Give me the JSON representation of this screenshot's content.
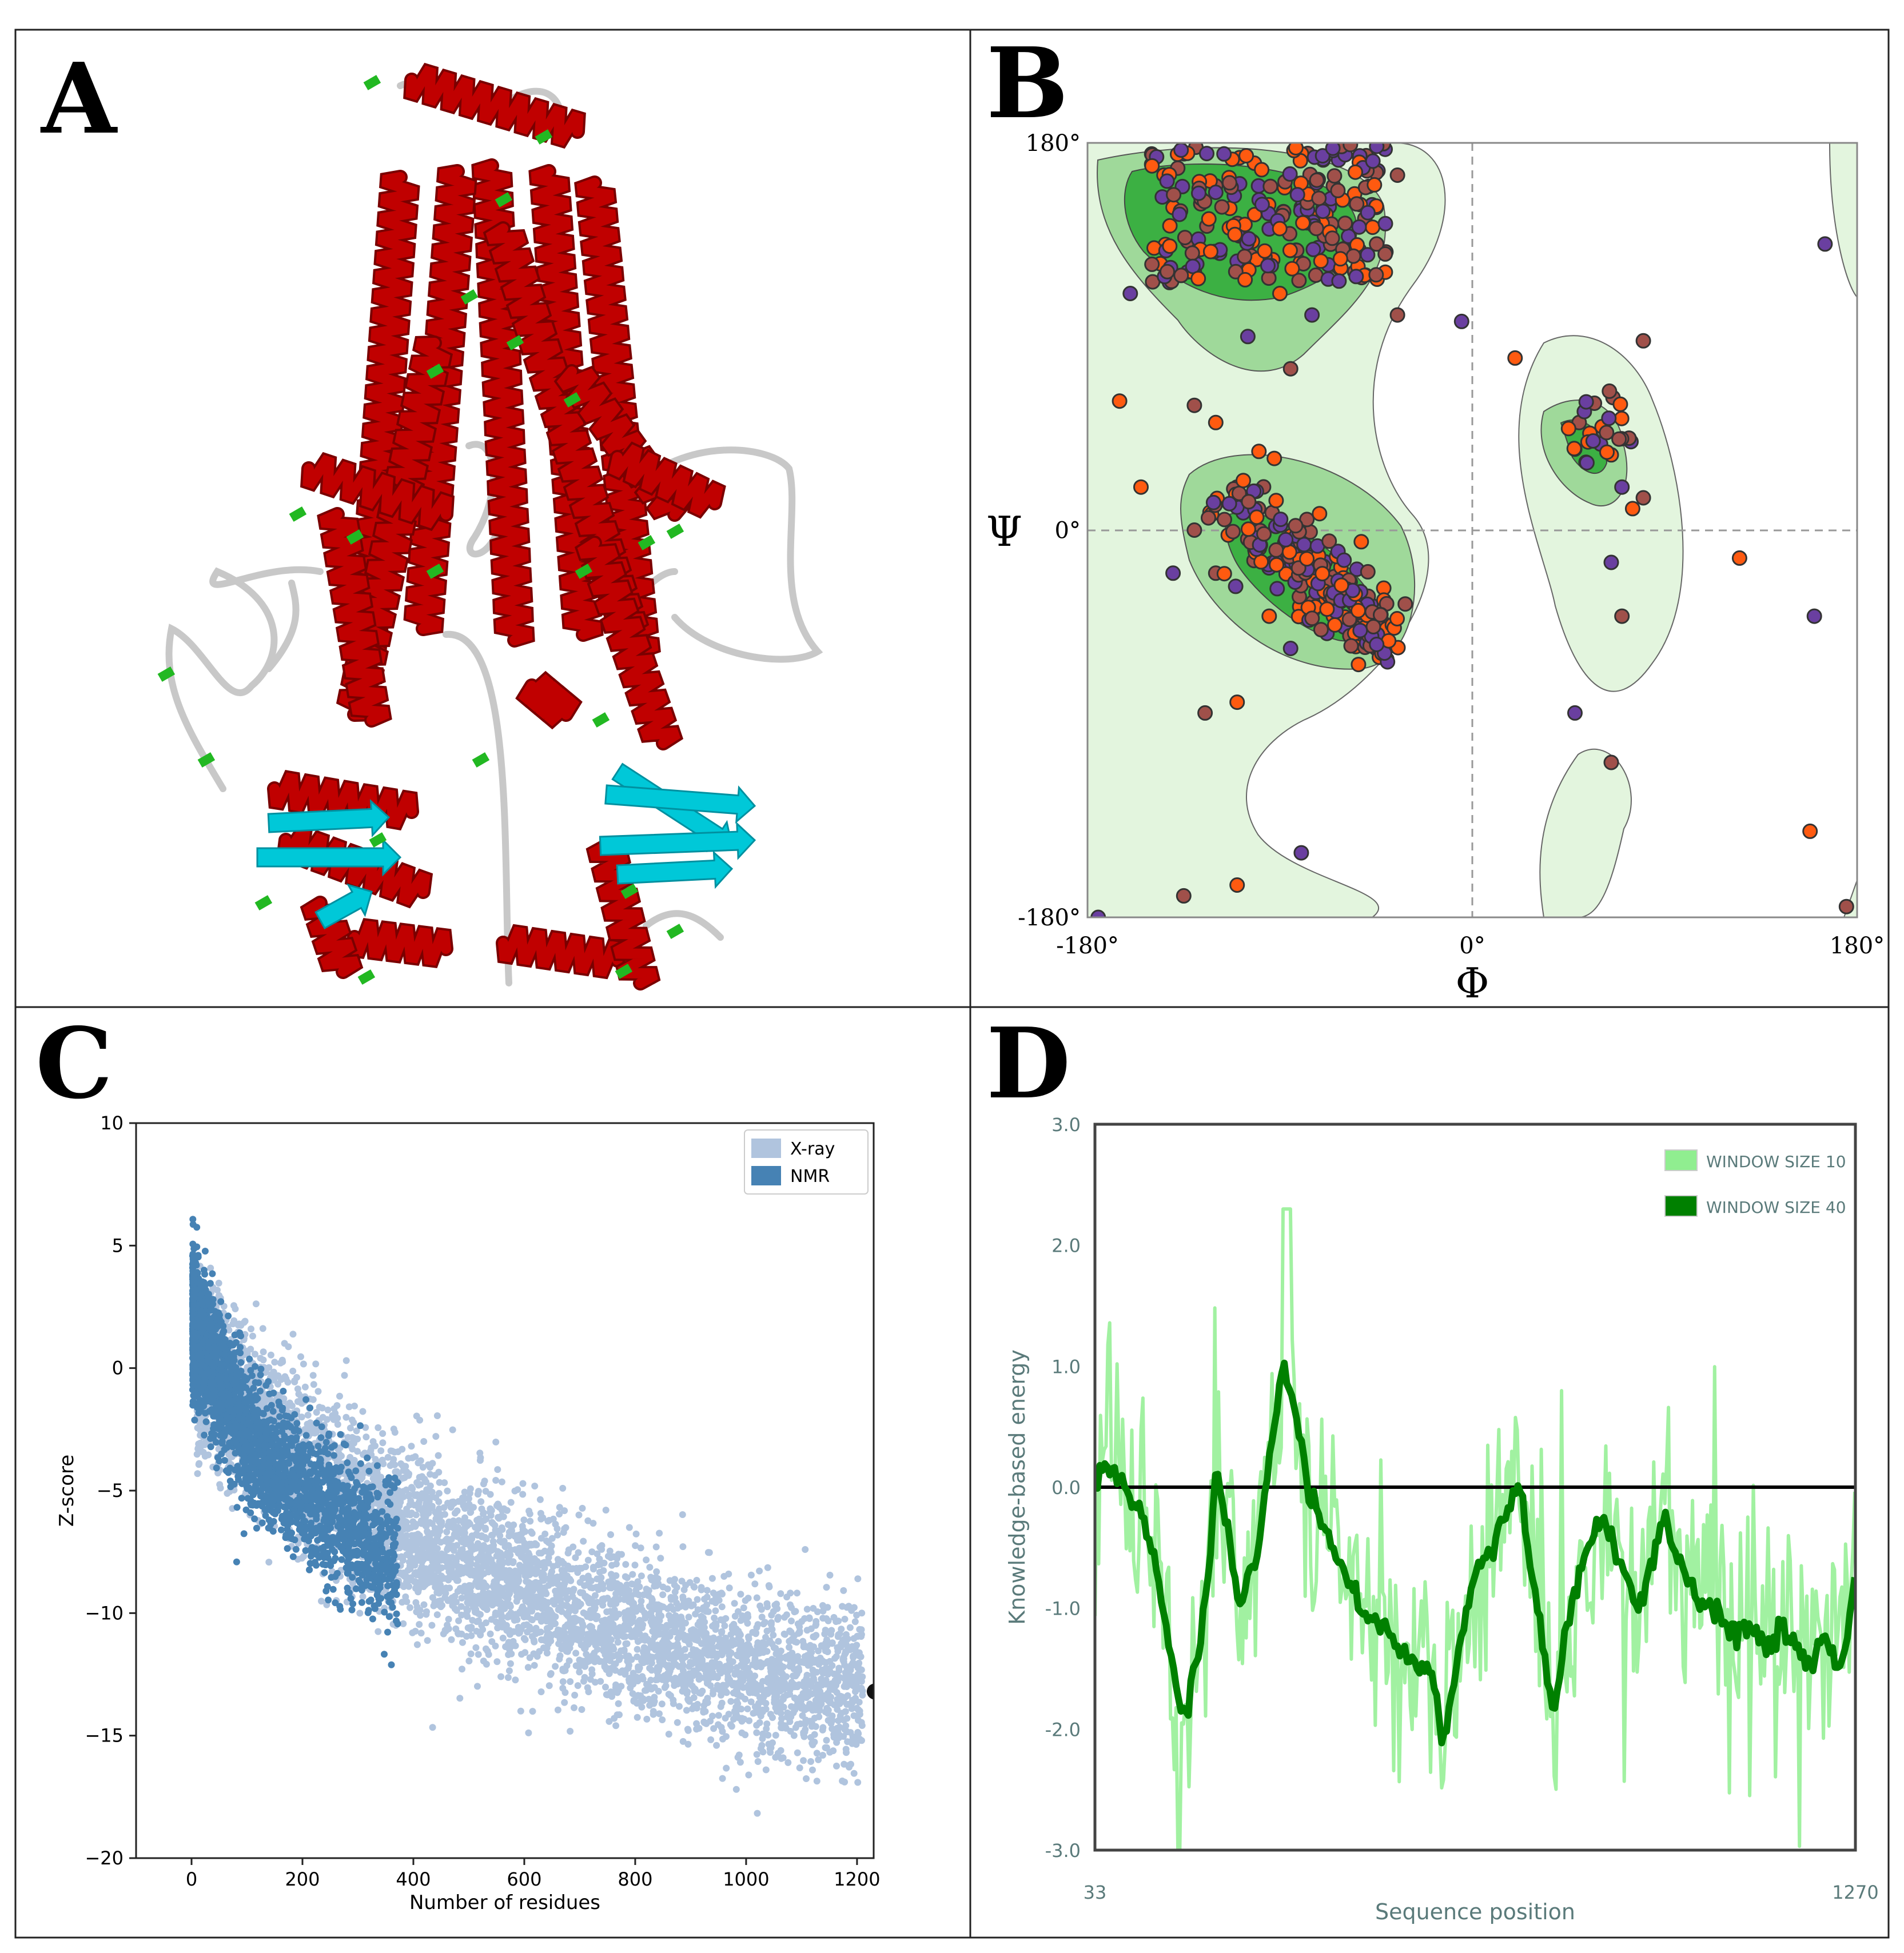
{
  "figure": {
    "panels": [
      {
        "letter": "A"
      },
      {
        "letter": "B"
      },
      {
        "letter": "C"
      },
      {
        "letter": "D"
      }
    ]
  },
  "colors": {
    "border": "#222222",
    "helix": "#c00000",
    "sheet": "#00c8d8",
    "turn": "#22b822",
    "coil": "#c8c8c8",
    "rama_favored": "#3cb043",
    "rama_allowed": "#9fd99a",
    "rama_generous": "#e3f5de",
    "dot_purple": "#6a3fa0",
    "dot_orange": "#ff5a10",
    "xray": "#b0c4de",
    "nmr": "#4682b4",
    "energy10": "#90ee90",
    "energy40": "#008000",
    "axis_text": "#5a7a7a"
  },
  "chart_data": [
    {
      "panel": "B",
      "type": "scatter",
      "title": "",
      "xlabel": "Φ",
      "ylabel": "Ψ",
      "xlim": [
        -180,
        180
      ],
      "ylim": [
        -180,
        180
      ],
      "x_ticks": [
        "-180°",
        "0°",
        "180°"
      ],
      "y_ticks": [
        "180°",
        "0°",
        "-180°"
      ],
      "regions": [
        {
          "name": "beta",
          "favored_phi": [
            -160,
            -50
          ],
          "favored_psi": [
            110,
            180
          ]
        },
        {
          "name": "alpha-right",
          "favored_phi": [
            -100,
            -40
          ],
          "favored_psi": [
            -60,
            -10
          ]
        },
        {
          "name": "alpha-left",
          "favored_phi": [
            40,
            70
          ],
          "favored_psi": [
            20,
            60
          ]
        }
      ],
      "points": [
        {
          "phi": -80,
          "psi": 150
        },
        {
          "phi": -95,
          "psi": 140
        },
        {
          "phi": -120,
          "psi": 160
        },
        {
          "phi": -70,
          "psi": 140
        },
        {
          "phi": -60,
          "psi": 130
        },
        {
          "phi": -150,
          "psi": 170
        },
        {
          "phi": -140,
          "psi": 150
        },
        {
          "phi": -110,
          "psi": 125
        },
        {
          "phi": -65,
          "psi": 160
        },
        {
          "phi": -90,
          "psi": 110
        },
        {
          "phi": -75,
          "psi": 100
        },
        {
          "phi": -55,
          "psi": 120
        },
        {
          "phi": -130,
          "psi": 120
        },
        {
          "phi": -100,
          "psi": 160
        },
        {
          "phi": -85,
          "psi": 130
        },
        {
          "phi": -45,
          "psi": 150
        },
        {
          "phi": -160,
          "psi": 110
        },
        {
          "phi": -35,
          "psi": 165
        },
        {
          "phi": -65,
          "psi": -40
        },
        {
          "phi": -60,
          "psi": -45
        },
        {
          "phi": -70,
          "psi": -30
        },
        {
          "phi": -75,
          "psi": -35
        },
        {
          "phi": -55,
          "psi": -50
        },
        {
          "phi": -80,
          "psi": -20
        },
        {
          "phi": -90,
          "psi": -10
        },
        {
          "phi": -50,
          "psi": -40
        },
        {
          "phi": -100,
          "psi": 10
        },
        {
          "phi": -110,
          "psi": 20
        },
        {
          "phi": -85,
          "psi": -55
        },
        {
          "phi": -45,
          "psi": -55
        },
        {
          "phi": -62,
          "psi": -25
        },
        {
          "phi": -68,
          "psi": -48
        },
        {
          "phi": -120,
          "psi": -20
        },
        {
          "phi": -95,
          "psi": -40
        },
        {
          "phi": -40,
          "psi": -60
        },
        {
          "phi": -130,
          "psi": 0
        },
        {
          "phi": 55,
          "psi": 45
        },
        {
          "phi": 60,
          "psi": 40
        },
        {
          "phi": 50,
          "psi": 50
        },
        {
          "phi": 65,
          "psi": 35
        },
        {
          "phi": 70,
          "psi": 20
        },
        {
          "phi": 80,
          "psi": 15
        },
        {
          "phi": 75,
          "psi": 10
        },
        {
          "phi": 65,
          "psi": -15
        },
        {
          "phi": 70,
          "psi": -40
        },
        {
          "phi": 20,
          "psi": 80
        },
        {
          "phi": -5,
          "psi": 97
        },
        {
          "phi": -35,
          "psi": 100
        },
        {
          "phi": -165,
          "psi": 60
        },
        {
          "phi": -175,
          "psi": -180
        },
        {
          "phi": -135,
          "psi": -170
        },
        {
          "phi": -110,
          "psi": -165
        },
        {
          "phi": -80,
          "psi": -150
        },
        {
          "phi": -125,
          "psi": -85
        },
        {
          "phi": -110,
          "psi": -80
        },
        {
          "phi": 48,
          "psi": -85
        },
        {
          "phi": 65,
          "psi": -108
        },
        {
          "phi": 125,
          "psi": -13
        },
        {
          "phi": 160,
          "psi": -40
        },
        {
          "phi": 175,
          "psi": -175
        },
        {
          "phi": 158,
          "psi": -140
        },
        {
          "phi": 165,
          "psi": 133
        },
        {
          "phi": 80,
          "psi": 88
        },
        {
          "phi": -155,
          "psi": 20
        },
        {
          "phi": -140,
          "psi": -20
        },
        {
          "phi": -130,
          "psi": 58
        },
        {
          "phi": -120,
          "psi": 50
        },
        {
          "phi": -105,
          "psi": 90
        },
        {
          "phi": -85,
          "psi": 75
        }
      ]
    },
    {
      "panel": "C",
      "type": "scatter",
      "title": "",
      "xlabel": "Number of residues",
      "ylabel": "Z-score",
      "xlim": [
        -100,
        1230
      ],
      "ylim": [
        -20,
        10
      ],
      "x_ticks": [
        0,
        200,
        400,
        600,
        800,
        1000,
        1200
      ],
      "y_ticks": [
        10,
        5,
        0,
        -5,
        -10,
        -15,
        -20
      ],
      "legend": [
        "X-ray",
        "NMR"
      ],
      "legend_position": "top-right",
      "series": [
        {
          "name": "X-ray",
          "trend": [
            [
              20,
              0
            ],
            [
              200,
              -4
            ],
            [
              400,
              -7
            ],
            [
              600,
              -9
            ],
            [
              800,
              -11
            ],
            [
              1000,
              -12.5
            ],
            [
              1200,
              -13
            ]
          ],
          "spread": 3
        },
        {
          "name": "NMR",
          "x_range": [
            0,
            370
          ],
          "trend": [
            [
              0,
              2
            ],
            [
              100,
              -3
            ],
            [
              200,
              -5
            ],
            [
              370,
              -8
            ]
          ],
          "spread": 2.5
        }
      ],
      "marker": {
        "x": 1232,
        "y": -13.2
      }
    },
    {
      "panel": "D",
      "type": "line",
      "title": "",
      "xlabel": "Sequence position",
      "ylabel": "Knowledge-based energy",
      "xlim": [
        33,
        1270
      ],
      "ylim": [
        -3.0,
        3.0
      ],
      "x_ticks": [
        "33",
        "1270"
      ],
      "y_ticks": [
        "3.0",
        "2.0",
        "1.0",
        "0.0",
        "-1.0",
        "-2.0",
        "-3.0"
      ],
      "legend": [
        "WINDOW SIZE 10",
        "WINDOW SIZE 40"
      ],
      "series": [
        {
          "name": "WINDOW SIZE 40",
          "points": [
            [
              33,
              0.0
            ],
            [
              50,
              0.2
            ],
            [
              70,
              0.1
            ],
            [
              90,
              -0.1
            ],
            [
              110,
              -0.3
            ],
            [
              130,
              -0.6
            ],
            [
              150,
              -1.2
            ],
            [
              170,
              -1.8
            ],
            [
              180,
              -1.9
            ],
            [
              200,
              -1.4
            ],
            [
              220,
              -0.6
            ],
            [
              230,
              0.2
            ],
            [
              250,
              -0.4
            ],
            [
              270,
              -1.0
            ],
            [
              300,
              -0.5
            ],
            [
              320,
              0.4
            ],
            [
              340,
              1.0
            ],
            [
              360,
              0.6
            ],
            [
              380,
              0.0
            ],
            [
              400,
              -0.3
            ],
            [
              430,
              -0.6
            ],
            [
              460,
              -1.0
            ],
            [
              490,
              -1.1
            ],
            [
              520,
              -1.3
            ],
            [
              550,
              -1.5
            ],
            [
              570,
              -1.4
            ],
            [
              590,
              -1.8
            ],
            [
              600,
              -2.1
            ],
            [
              620,
              -1.5
            ],
            [
              650,
              -0.7
            ],
            [
              680,
              -0.5
            ],
            [
              710,
              -0.1
            ],
            [
              720,
              0.1
            ],
            [
              740,
              -0.6
            ],
            [
              760,
              -1.3
            ],
            [
              780,
              -1.9
            ],
            [
              800,
              -1.2
            ],
            [
              820,
              -0.7
            ],
            [
              860,
              -0.2
            ],
            [
              890,
              -0.7
            ],
            [
              920,
              -1.0
            ],
            [
              940,
              -0.6
            ],
            [
              960,
              -0.2
            ],
            [
              980,
              -0.6
            ],
            [
              1010,
              -0.9
            ],
            [
              1040,
              -1.0
            ],
            [
              1070,
              -1.2
            ],
            [
              1100,
              -1.1
            ],
            [
              1130,
              -1.3
            ],
            [
              1160,
              -1.2
            ],
            [
              1180,
              -1.4
            ],
            [
              1200,
              -1.5
            ],
            [
              1220,
              -1.2
            ],
            [
              1240,
              -1.5
            ],
            [
              1255,
              -1.3
            ],
            [
              1270,
              -0.7
            ]
          ]
        },
        {
          "name": "WINDOW SIZE 10",
          "noise": "spiky",
          "range": [
            -3.0,
            2.4
          ]
        }
      ]
    }
  ]
}
